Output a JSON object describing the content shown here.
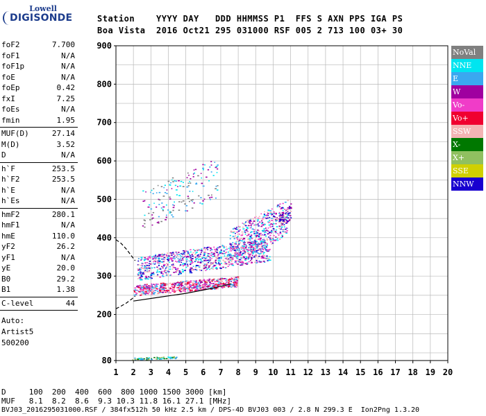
{
  "logo": {
    "line1": "Lowell",
    "line2": "DIGISONDE"
  },
  "header": {
    "row1": "Station    YYYY DAY   DDD HHMMSS P1  FFS S AXN PPS IGA PS",
    "row2": "Boa Vista  2016 Oct21 295 031000 RSF 005 2 713 100 03+ 30"
  },
  "params_a": [
    {
      "label": "foF2",
      "value": "7.700"
    },
    {
      "label": "foF1",
      "value": "N/A"
    },
    {
      "label": "foF1p",
      "value": "N/A"
    },
    {
      "label": "foE",
      "value": "N/A"
    },
    {
      "label": "foEp",
      "value": "0.42"
    },
    {
      "label": "fxI",
      "value": "7.25"
    },
    {
      "label": "foEs",
      "value": "N/A"
    },
    {
      "label": "fmin",
      "value": "1.95"
    }
  ],
  "params_b": [
    {
      "label": "MUF(D)",
      "value": "27.14"
    },
    {
      "label": "M(D)",
      "value": "3.52"
    },
    {
      "label": "D",
      "value": "N/A"
    }
  ],
  "params_c": [
    {
      "label": "h`F",
      "value": "253.5"
    },
    {
      "label": "h`F2",
      "value": "253.5"
    },
    {
      "label": "h`E",
      "value": "N/A"
    },
    {
      "label": "h`Es",
      "value": "N/A"
    }
  ],
  "params_d": [
    {
      "label": "hmF2",
      "value": "280.1"
    },
    {
      "label": "hmF1",
      "value": "N/A"
    },
    {
      "label": "hmE",
      "value": "110.0"
    },
    {
      "label": "yF2",
      "value": "26.2"
    },
    {
      "label": "yF1",
      "value": "N/A"
    },
    {
      "label": "yE",
      "value": "20.0"
    },
    {
      "label": "B0",
      "value": "29.2"
    },
    {
      "label": "B1",
      "value": "1.38"
    }
  ],
  "params_e": [
    {
      "label": "C-level",
      "value": "44"
    }
  ],
  "autoscaling": {
    "line1": "Auto:",
    "line2": "Artist5",
    "line3": "500200"
  },
  "bottom": {
    "d_row": "D     100  200  400  600  800 1000 1500 3000 [km]",
    "muf_row": "MUF   8.1  8.2  8.6  9.3 10.3 11.8 16.1 27.1 [MHz]",
    "file_row": "BVJ03_2016295031000.RSF / 384fx512h 50 kHz 2.5 km / DPS-4D BVJ03 003 / 2.8 N 299.3 E  Ion2Png 1.3.20"
  },
  "legend": [
    {
      "label": "NoVal",
      "color": "#808080"
    },
    {
      "label": "NNE",
      "color": "#00e5f0"
    },
    {
      "label": "E",
      "color": "#3aa8f0"
    },
    {
      "label": "W",
      "color": "#a000a0"
    },
    {
      "label": "Vo-",
      "color": "#f03cc8"
    },
    {
      "label": "Vo+",
      "color": "#f00030"
    },
    {
      "label": "SSW",
      "color": "#f4b4b4"
    },
    {
      "label": "X-",
      "color": "#007800"
    },
    {
      "label": "X+",
      "color": "#90c060"
    },
    {
      "label": "SSE",
      "color": "#d0d000"
    },
    {
      "label": "NNW",
      "color": "#1800d0"
    }
  ],
  "chart_data": {
    "type": "scatter",
    "xlabel": "",
    "ylabel": "",
    "xlim": [
      1,
      20
    ],
    "ylim": [
      80,
      900
    ],
    "xticks": [
      "1",
      "2",
      "3",
      "4",
      "5",
      "6",
      "7",
      "8",
      "9",
      "10",
      "11",
      "12",
      "13",
      "14",
      "15",
      "16",
      "17",
      "18",
      "19",
      "20"
    ],
    "yticks": [
      "80",
      "200",
      "300",
      "400",
      "500",
      "600",
      "700",
      "800",
      "900"
    ],
    "ytick_values": [
      80,
      200,
      300,
      400,
      500,
      600,
      700,
      800,
      900
    ],
    "grid": true,
    "clusters": [
      {
        "name": "o-trace-lower",
        "x_range": [
          2.0,
          8.0
        ],
        "y_range": [
          250,
          300
        ],
        "colors": [
          "#f00030",
          "#f03cc8",
          "#a000a0",
          "#f4b4b4",
          "#3aa8f0"
        ],
        "count": 650
      },
      {
        "name": "o-trace-mid",
        "x_range": [
          2.2,
          9.8
        ],
        "y_range": [
          290,
          400
        ],
        "colors": [
          "#a000a0",
          "#f03cc8",
          "#3aa8f0",
          "#00e5f0",
          "#f4b4b4",
          "#1800d0"
        ],
        "count": 900
      },
      {
        "name": "spread-upper",
        "x_range": [
          7.5,
          10.8
        ],
        "y_range": [
          330,
          500
        ],
        "colors": [
          "#3aa8f0",
          "#00e5f0",
          "#a000a0",
          "#f4b4b4",
          "#f03cc8",
          "#1800d0"
        ],
        "count": 500
      },
      {
        "name": "nnw-top",
        "x_range": [
          10.3,
          11.0
        ],
        "y_range": [
          420,
          490
        ],
        "colors": [
          "#1800d0",
          "#a000a0",
          "#f4b4b4"
        ],
        "count": 80
      },
      {
        "name": "oblique-upper",
        "x_range": [
          2.5,
          6.8
        ],
        "y_range": [
          420,
          610
        ],
        "colors": [
          "#3aa8f0",
          "#00e5f0",
          "#a000a0",
          "#808080"
        ],
        "count": 160
      },
      {
        "name": "low-echo",
        "x_range": [
          1.9,
          4.5
        ],
        "y_range": [
          82,
          92
        ],
        "colors": [
          "#00e5f0",
          "#3aa8f0",
          "#90c060",
          "#007800"
        ],
        "count": 60
      }
    ],
    "profile_lines": [
      {
        "name": "dashed-topside",
        "x": [
          1.0,
          1.3,
          1.6,
          1.9,
          2.1
        ],
        "y": [
          395,
          385,
          370,
          352,
          340
        ]
      },
      {
        "name": "dashed-bottomside",
        "x": [
          1.0,
          1.3,
          1.6,
          1.9,
          2.1
        ],
        "y": [
          215,
          222,
          230,
          240,
          248
        ]
      },
      {
        "name": "solid-profile",
        "x": [
          2.0,
          3.5,
          5.0,
          6.5,
          7.6
        ],
        "y": [
          235,
          245,
          255,
          268,
          280
        ]
      }
    ]
  }
}
